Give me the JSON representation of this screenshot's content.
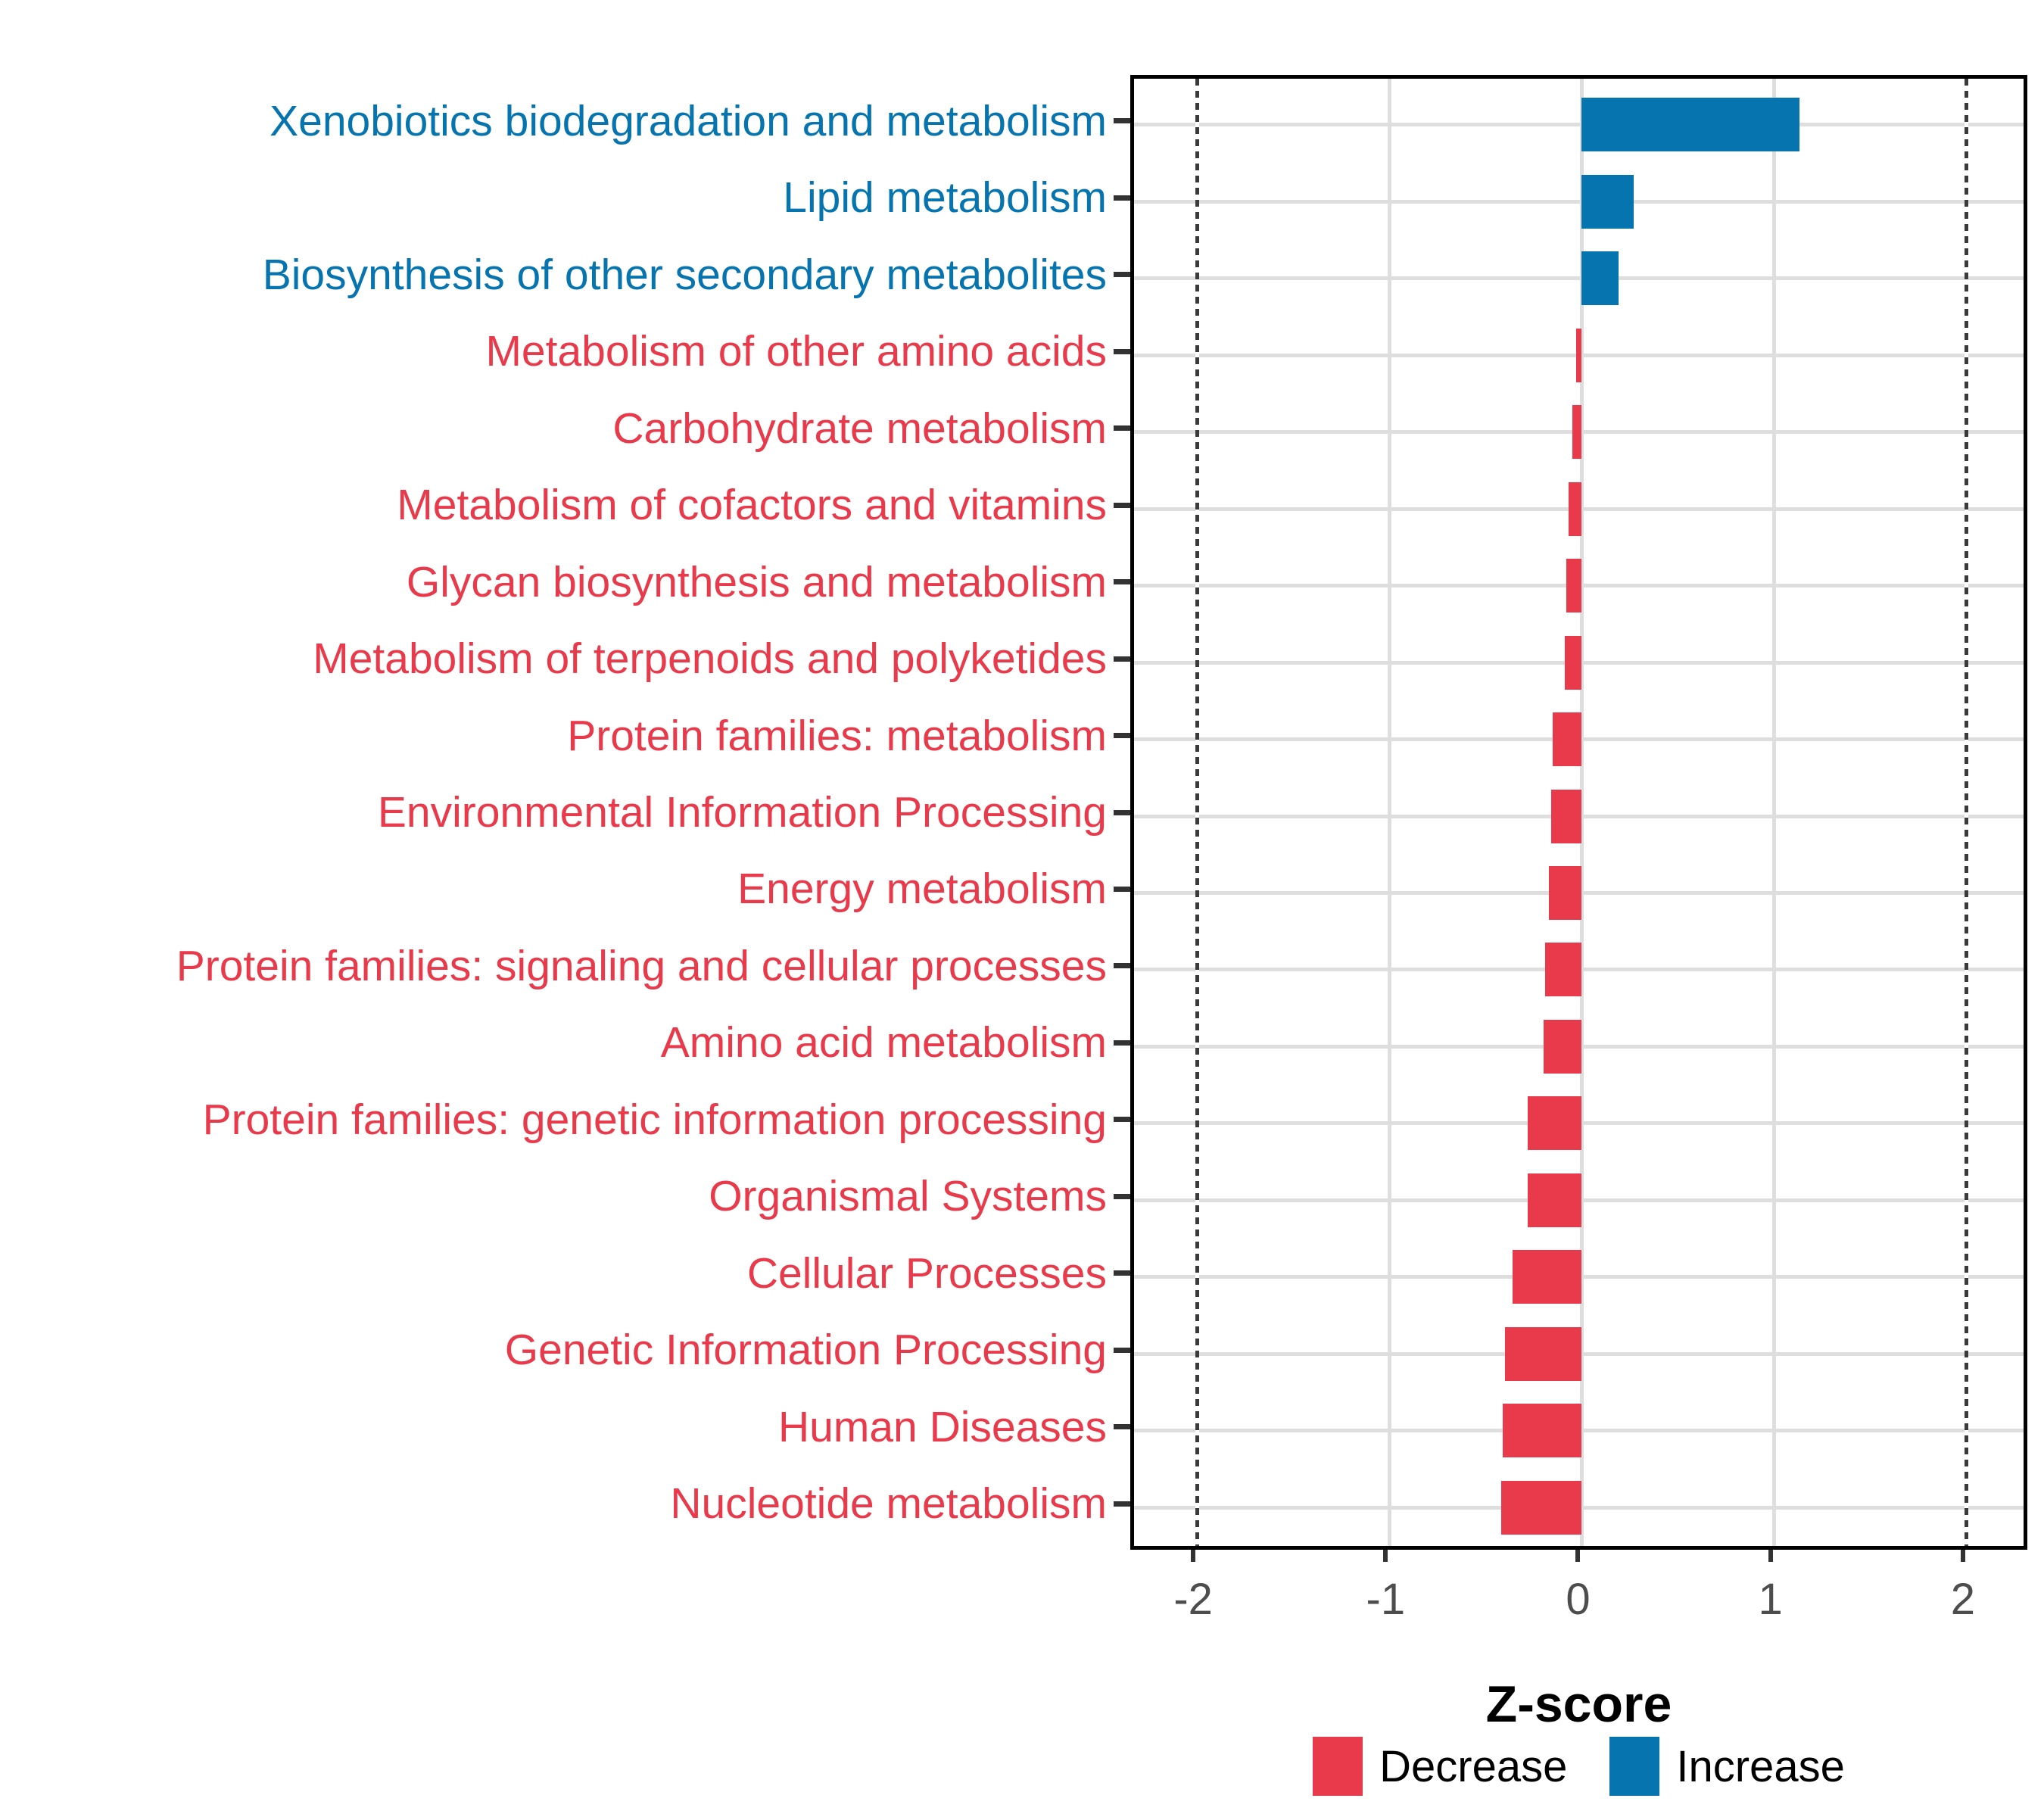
{
  "figure": {
    "background_color": "#FFFFFF",
    "panel_border_color": "#000000",
    "grid_color": "#DEDEDE",
    "reference_line_color": "#3A3A3A",
    "tick_color": "#333333",
    "tick_label_color": "#4D4D4D"
  },
  "chart_data": {
    "type": "bar",
    "orientation": "horizontal",
    "title": "",
    "xlabel": "Z-score",
    "ylabel": "",
    "grid": true,
    "x_axis": {
      "ticks": [
        -2,
        -1,
        0,
        1,
        2
      ],
      "tick_labels": [
        "-2",
        "-1",
        "0",
        "1",
        "2"
      ],
      "range": [
        -2.327,
        2.335
      ],
      "gridline_ticks": [
        -1,
        0,
        1
      ],
      "reference_lines": [
        -2,
        2
      ],
      "reference_line_style": "dotted"
    },
    "categories": [
      "Xenobiotics biodegradation and metabolism",
      "Lipid metabolism",
      "Biosynthesis of other secondary metabolites",
      "Metabolism of other amino acids",
      "Carbohydrate metabolism",
      "Metabolism of cofactors and vitamins",
      "Glycan biosynthesis and metabolism",
      "Metabolism of terpenoids and polyketides",
      "Protein families: metabolism",
      "Environmental Information Processing",
      "Energy metabolism",
      "Protein families: signaling and cellular processes",
      "Amino acid metabolism",
      "Protein families: genetic information processing",
      "Organismal Systems",
      "Cellular Processes",
      "Genetic Information Processing",
      "Human Diseases",
      "Nucleotide metabolism"
    ],
    "values": [
      1.13,
      0.27,
      0.19,
      -0.03,
      -0.05,
      -0.07,
      -0.08,
      -0.09,
      -0.15,
      -0.16,
      -0.17,
      -0.19,
      -0.2,
      -0.28,
      -0.28,
      -0.36,
      -0.4,
      -0.41,
      -0.42
    ],
    "groups": [
      "Increase",
      "Increase",
      "Increase",
      "Decrease",
      "Decrease",
      "Decrease",
      "Decrease",
      "Decrease",
      "Decrease",
      "Decrease",
      "Decrease",
      "Decrease",
      "Decrease",
      "Decrease",
      "Decrease",
      "Decrease",
      "Decrease",
      "Decrease",
      "Decrease"
    ],
    "colors": {
      "Increase": "#0674AF",
      "Decrease": "#E83A4A"
    },
    "legend": {
      "position": "bottom",
      "items": [
        {
          "label": "Decrease",
          "group": "Decrease",
          "color": "#E83A4A"
        },
        {
          "label": "Increase",
          "group": "Increase",
          "color": "#0674AF"
        }
      ]
    }
  }
}
